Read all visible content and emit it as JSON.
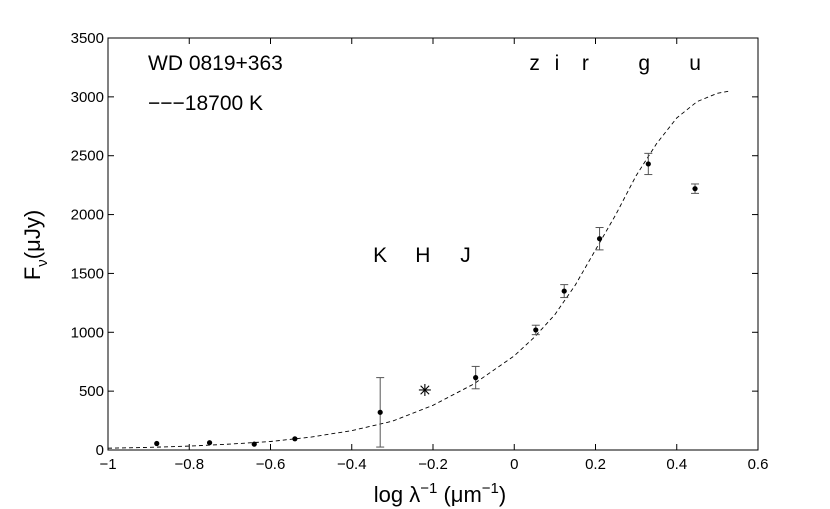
{
  "chart_data": {
    "type": "scatter",
    "xlabel": {
      "base": "log λ",
      "sup": "−1",
      "unit_open": " (μm",
      "unit_sup": "−1",
      "unit_close": ")"
    },
    "ylabel": {
      "base": "F",
      "sub": "ν",
      "unit": "(μJy)"
    },
    "xlim": [
      -1,
      0.6
    ],
    "ylim": [
      0,
      3500
    ],
    "x_ticks": [
      -1,
      -0.8,
      -0.6,
      -0.4,
      -0.2,
      0,
      0.2,
      0.4,
      0.6
    ],
    "x_tick_labels": [
      "−1",
      "−0.8",
      "−0.6",
      "−0.4",
      "−0.2",
      "0",
      "0.2",
      "0.4",
      "0.6"
    ],
    "y_ticks": [
      0,
      500,
      1000,
      1500,
      2000,
      2500,
      3000,
      3500
    ],
    "y_tick_labels": [
      "0",
      "500",
      "1000",
      "1500",
      "2000",
      "2500",
      "3000",
      "3500"
    ],
    "grid": false,
    "annotations": {
      "object": "WD 0819+363",
      "model": "−−−18700  K",
      "bands_optical": [
        {
          "label": "z",
          "x": 0.05
        },
        {
          "label": "i",
          "x": 0.105
        },
        {
          "label": "r",
          "x": 0.175
        },
        {
          "label": "g",
          "x": 0.32
        },
        {
          "label": "u",
          "x": 0.445
        }
      ],
      "bands_ir": [
        {
          "label": "K",
          "x": -0.33
        },
        {
          "label": "H",
          "x": -0.225
        },
        {
          "label": "J",
          "x": -0.12
        }
      ]
    },
    "series": [
      {
        "type": "points",
        "x": [
          -0.88,
          -0.75,
          -0.64,
          -0.54,
          -0.33,
          -0.095,
          0.053,
          0.123,
          0.21,
          0.33,
          0.445
        ],
        "y": [
          55,
          62,
          50,
          95,
          320,
          615,
          1020,
          1350,
          1795,
          2430,
          2220
        ],
        "yerr": [
          0,
          0,
          0,
          0,
          295,
          95,
          40,
          55,
          95,
          90,
          40
        ]
      },
      {
        "type": "star",
        "x": [
          -0.22
        ],
        "y": [
          510
        ]
      },
      {
        "type": "model-curve",
        "style": "dashed",
        "x": [
          -1.0,
          -0.9,
          -0.8,
          -0.7,
          -0.6,
          -0.5,
          -0.4,
          -0.3,
          -0.2,
          -0.1,
          0.0,
          0.05,
          0.1,
          0.15,
          0.2,
          0.25,
          0.3,
          0.35,
          0.4,
          0.45,
          0.5,
          0.53
        ],
        "y": [
          15,
          22,
          33,
          50,
          72,
          110,
          165,
          245,
          380,
          560,
          800,
          960,
          1150,
          1400,
          1700,
          2000,
          2330,
          2600,
          2820,
          2960,
          3030,
          3050
        ]
      }
    ]
  }
}
